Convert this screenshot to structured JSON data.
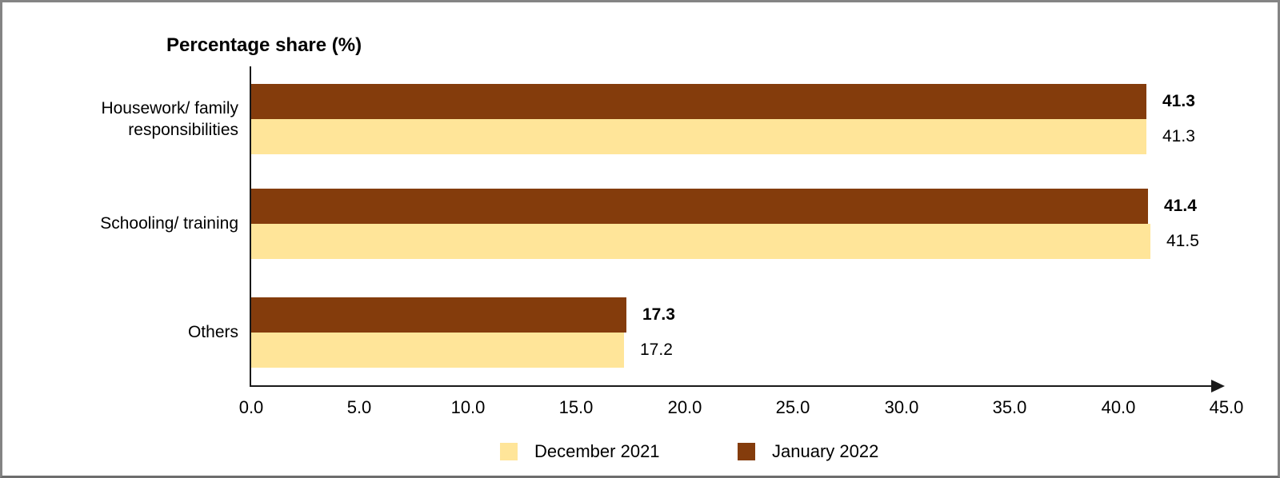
{
  "chart_data": {
    "type": "bar",
    "orientation": "horizontal",
    "title": "Percentage share (%)",
    "categories": [
      "Housework/ family responsibilities",
      "Schooling/ training",
      "Others"
    ],
    "series": [
      {
        "name": "January 2022",
        "color": "#843C0C",
        "values": [
          41.3,
          41.4,
          17.3
        ],
        "display_labels": [
          "41.3",
          "41.4",
          "17.3"
        ],
        "label_bold": true
      },
      {
        "name": "December 2021",
        "color": "#FFE599",
        "values": [
          41.3,
          41.5,
          17.2
        ],
        "display_labels": [
          "41.3",
          "41.5",
          "17.2"
        ],
        "label_bold": false
      }
    ],
    "x_axis": {
      "min": 0.0,
      "max": 45.0,
      "tick_step": 5.0,
      "tick_labels": [
        "0.0",
        "5.0",
        "10.0",
        "15.0",
        "20.0",
        "25.0",
        "30.0",
        "35.0",
        "40.0",
        "45.0"
      ]
    },
    "legend": {
      "position": "bottom",
      "items": [
        {
          "label": "December 2021",
          "color": "#FFE599"
        },
        {
          "label": "January 2022",
          "color": "#843C0C"
        }
      ]
    },
    "grid": "off",
    "value_labels": "end-of-bar",
    "colors": {
      "axis": "#000000",
      "text": "#000000",
      "frame_border": "#808080",
      "background": "#FFFFFF"
    }
  }
}
